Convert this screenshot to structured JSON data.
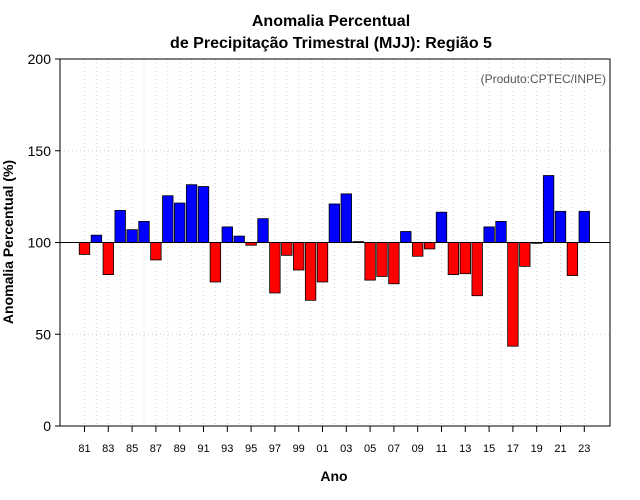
{
  "chart_data": {
    "type": "bar",
    "title_line1": "Anomalia Percentual",
    "title_line2": "de Precipitação Trimestral (MJJ): Região 5",
    "credit": "(Produto:CPTEC/INPE)",
    "xlabel": "Ano",
    "ylabel": "Anomalia Percentual (%)",
    "ylim": [
      0,
      200
    ],
    "yticks": [
      0,
      50,
      100,
      150,
      200
    ],
    "baseline": 100,
    "colors": {
      "above": "#0000ff",
      "below": "#ff0000",
      "outline": "#000000",
      "grid": "#d3d3d3"
    },
    "tick_labels": [
      "81",
      "83",
      "85",
      "87",
      "89",
      "91",
      "93",
      "95",
      "97",
      "99",
      "01",
      "03",
      "05",
      "07",
      "09",
      "11",
      "13",
      "15",
      "17",
      "19",
      "21",
      "23"
    ],
    "years": [
      1981,
      1982,
      1983,
      1984,
      1985,
      1986,
      1987,
      1988,
      1989,
      1990,
      1991,
      1992,
      1993,
      1994,
      1995,
      1996,
      1997,
      1998,
      1999,
      2000,
      2001,
      2002,
      2003,
      2004,
      2005,
      2006,
      2007,
      2008,
      2009,
      2010,
      2011,
      2012,
      2013,
      2014,
      2015,
      2016,
      2017,
      2018,
      2019,
      2020,
      2021,
      2022,
      2023
    ],
    "values": [
      93.5,
      104,
      82.5,
      117.5,
      107,
      111.5,
      90.5,
      125.5,
      121.5,
      131.5,
      130.5,
      78.5,
      108.5,
      103.5,
      98.5,
      113,
      72.5,
      93,
      85,
      68.5,
      78.5,
      121,
      126.5,
      100.5,
      79.5,
      81.5,
      77.5,
      106,
      92.5,
      96.5,
      116.5,
      82.5,
      83,
      71,
      108.5,
      111.5,
      43.5,
      87,
      100,
      136.5,
      117,
      82,
      117
    ]
  }
}
